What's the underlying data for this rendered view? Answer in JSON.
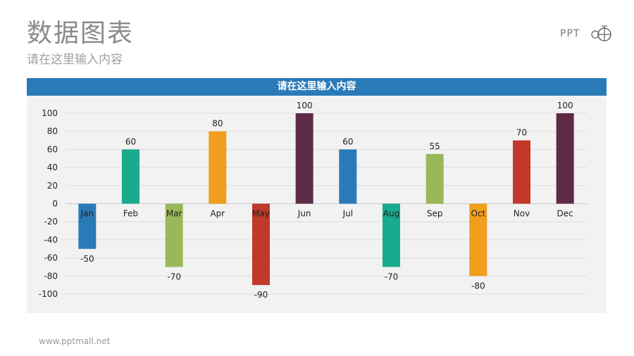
{
  "header": {
    "title": "数据图表",
    "subtitle": "请在这里输入内容"
  },
  "logo": {
    "text": "PPT"
  },
  "chart_banner": {
    "title": "请在这里输入内容"
  },
  "footer": {
    "url": "www.pptmall.net"
  },
  "chart_data": {
    "type": "bar",
    "title": "请在这里输入内容",
    "categories": [
      "Jan",
      "Feb",
      "Mar",
      "Apr",
      "May",
      "Jun",
      "Jul",
      "Aug",
      "Sep",
      "Oct",
      "Nov",
      "Dec"
    ],
    "values": [
      -50,
      60,
      -70,
      80,
      -90,
      100,
      60,
      -70,
      55,
      -80,
      70,
      100
    ],
    "colors": [
      "#2a7ab8",
      "#1aaa8e",
      "#9ab85a",
      "#f19e1d",
      "#c0392b",
      "#5e2b47",
      "#2a7ab8",
      "#1aaa8e",
      "#9ab85a",
      "#f19e1d",
      "#c0392b",
      "#5e2b47"
    ],
    "ylim": [
      -100,
      100
    ],
    "yticks": [
      100,
      80,
      60,
      40,
      20,
      0,
      -20,
      -40,
      -60,
      -80,
      -100
    ],
    "grid": true,
    "legend": "none",
    "xlabel": "",
    "ylabel": ""
  }
}
